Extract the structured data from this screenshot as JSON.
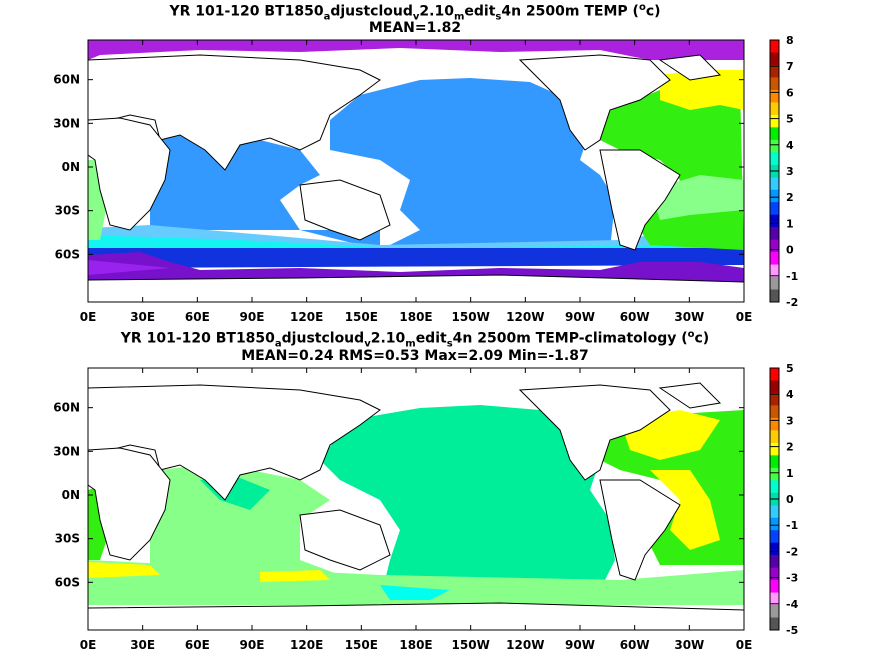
{
  "panels": [
    {
      "title_parts": {
        "a": "YR 101-120 BT1850",
        "b": "a",
        "c": "djustcloud",
        "d": "v",
        "e": "2.10",
        "f": "m",
        "g": "edit",
        "h": "s",
        "i": "4n 2500m TEMP (",
        "j": "o",
        "k": "c)"
      },
      "stats": "MEAN=1.82",
      "colorbar_ticks": [
        "8",
        "7",
        "6",
        "5",
        "4",
        "3",
        "2",
        "1",
        "0",
        "-1",
        "-2"
      ]
    },
    {
      "title_parts": {
        "a": "YR 101-120 BT1850",
        "b": "a",
        "c": "djustcloud",
        "d": "v",
        "e": "2.10",
        "f": "m",
        "g": "edit",
        "h": "s",
        "i": "4n 2500m TEMP-climatology (",
        "j": "o",
        "k": "c)"
      },
      "stats": "MEAN=0.24   RMS=0.53   Max=2.09   Min=-1.87",
      "colorbar_ticks": [
        "5",
        "4",
        "3",
        "2",
        "1",
        "0",
        "-1",
        "-2",
        "-3",
        "-4",
        "-5"
      ]
    }
  ],
  "x_ticks": [
    "0E",
    "30E",
    "60E",
    "90E",
    "120E",
    "150E",
    "180E",
    "150W",
    "120W",
    "90W",
    "60W",
    "30W",
    "0E"
  ],
  "y_ticks": [
    "60N",
    "30N",
    "0N",
    "30S",
    "60S"
  ],
  "colors": {
    "colorbar": [
      "#777777",
      "#ff66ff",
      "#9900cc",
      "#0000dd",
      "#0088ff",
      "#33bbff",
      "#00eebb",
      "#88ff88",
      "#22dd00",
      "#ffff00",
      "#ffaa00",
      "#ff7700",
      "#dd2200",
      "#aa0000",
      "#550000",
      "#ff0000"
    ],
    "panel1_pacific": "#3399ff",
    "panel1_south": "#66ccff",
    "panel1_atlantic": "#33ee11",
    "panel2_pacific": "#00ee99",
    "panel2_atlantic": "#33ee11",
    "land": "#ffffff"
  }
}
